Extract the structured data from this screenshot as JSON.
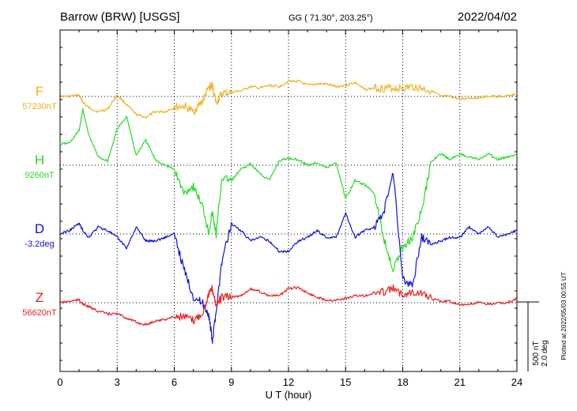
{
  "header": {
    "station": "Barrow (BRW)  [USGS]",
    "coords": "GG ( 71.30°, 203.25°)",
    "date": "2022/04/02"
  },
  "footer": {
    "plotted": "Plotted at 2022/05/03 00:55 UT"
  },
  "chart_data": {
    "type": "line",
    "xlabel": "U T (hour)",
    "xlim": [
      0,
      24
    ],
    "xticks": [
      "0",
      "3",
      "6",
      "9",
      "12",
      "15",
      "18",
      "21",
      "24"
    ],
    "grid": true,
    "scale_bar": {
      "nT": "500 nT",
      "deg": "2.0 deg"
    },
    "series": [
      {
        "name": "F",
        "baseline_label": "57230nT",
        "color": "#f0b020",
        "x": [
          0,
          0.5,
          1,
          1.2,
          1.5,
          2,
          2.5,
          3,
          3.5,
          4,
          4.5,
          5,
          5.5,
          6,
          6.5,
          7,
          7.5,
          7.8,
          8,
          8.2,
          8.5,
          9,
          9.5,
          10,
          10.5,
          11,
          11.5,
          12,
          12.5,
          13,
          13.5,
          14,
          14.5,
          15,
          15.5,
          16,
          16.5,
          17,
          17.5,
          18,
          18.5,
          19,
          19.5,
          20,
          20.5,
          21,
          21.5,
          22,
          22.5,
          23,
          23.5,
          24
        ],
        "values": [
          0,
          0,
          10,
          -40,
          -80,
          -110,
          -90,
          10,
          -60,
          -130,
          -150,
          -110,
          -110,
          -80,
          -70,
          -110,
          -30,
          60,
          80,
          -50,
          20,
          30,
          40,
          70,
          60,
          80,
          70,
          110,
          110,
          80,
          90,
          90,
          70,
          80,
          100,
          50,
          60,
          60,
          60,
          60,
          70,
          60,
          40,
          0,
          0,
          -20,
          -10,
          -10,
          0,
          0,
          0,
          20
        ]
      },
      {
        "name": "H",
        "baseline_label": "9260nT",
        "color": "#22dd22",
        "x": [
          0,
          0.5,
          1,
          1.2,
          1.5,
          2,
          2.5,
          3,
          3.5,
          4,
          4.5,
          5,
          5.5,
          6,
          6.5,
          7,
          7.5,
          7.8,
          8,
          8.2,
          8.5,
          9,
          9.5,
          10,
          10.5,
          11,
          11.5,
          12,
          12.5,
          13,
          13.5,
          14,
          14.5,
          15,
          15.5,
          16,
          16.5,
          17,
          17.5,
          18,
          18.5,
          19,
          19.5,
          20,
          20.5,
          21,
          21.5,
          22,
          22.5,
          23,
          23.5,
          24
        ],
        "values": [
          150,
          160,
          250,
          400,
          220,
          60,
          30,
          260,
          350,
          70,
          180,
          40,
          0,
          -30,
          -200,
          -150,
          -300,
          -480,
          -340,
          -500,
          -90,
          -110,
          -30,
          10,
          -60,
          -110,
          30,
          50,
          40,
          0,
          20,
          -20,
          20,
          -240,
          -110,
          -140,
          -200,
          -520,
          -750,
          -590,
          -520,
          -330,
          30,
          80,
          40,
          80,
          60,
          40,
          80,
          40,
          60,
          80
        ]
      },
      {
        "name": "D",
        "baseline_label": "-3.2deg",
        "color": "#1010dd",
        "x": [
          0,
          0.5,
          1,
          1.2,
          1.5,
          2,
          2.5,
          3,
          3.5,
          4,
          4.5,
          5,
          5.5,
          6,
          6.5,
          7,
          7.5,
          7.8,
          8,
          8.2,
          8.5,
          9,
          9.5,
          10,
          10.5,
          11,
          11.5,
          12,
          12.5,
          13,
          13.5,
          14,
          14.5,
          15,
          15.5,
          16,
          16.5,
          17,
          17.5,
          18,
          18.5,
          19,
          19.5,
          20,
          20.5,
          21,
          21.5,
          22,
          22.5,
          23,
          23.5,
          24
        ],
        "values": [
          0,
          0.1,
          0.3,
          0.1,
          -0.1,
          0.2,
          0.1,
          -0.1,
          -0.4,
          0.2,
          -0.2,
          -0.2,
          -0.1,
          0,
          -1.0,
          -1.8,
          -2.0,
          -2.3,
          -3.1,
          -2.2,
          -0.8,
          0.3,
          0.1,
          -0.2,
          -0.1,
          -0.2,
          -0.5,
          -0.5,
          -0.2,
          -0.1,
          0.1,
          -0.1,
          -0.1,
          0.6,
          -0.1,
          0.1,
          0.2,
          0.6,
          1.8,
          -1.3,
          -1.5,
          -0.1,
          -0.3,
          -0.2,
          -0.1,
          -0.1,
          0.2,
          0,
          0.2,
          -0.1,
          0,
          0.1
        ]
      },
      {
        "name": "Z",
        "baseline_label": "56620nT",
        "color": "#e82020",
        "x": [
          0,
          0.5,
          1,
          1.2,
          1.5,
          2,
          2.5,
          3,
          3.5,
          4,
          4.5,
          5,
          5.5,
          6,
          6.5,
          7,
          7.5,
          7.8,
          8,
          8.2,
          8.5,
          9,
          9.5,
          10,
          10.5,
          11,
          11.5,
          12,
          12.5,
          13,
          13.5,
          14,
          14.5,
          15,
          15.5,
          16,
          16.5,
          17,
          17.5,
          18,
          18.5,
          19,
          19.5,
          20,
          20.5,
          21,
          21.5,
          22,
          22.5,
          23,
          23.5,
          24
        ],
        "values": [
          0,
          10,
          20,
          -10,
          -30,
          -60,
          -80,
          -80,
          -110,
          -140,
          -160,
          -130,
          -120,
          -100,
          -100,
          -130,
          -70,
          60,
          100,
          -20,
          40,
          40,
          50,
          100,
          80,
          50,
          50,
          100,
          110,
          70,
          40,
          20,
          20,
          30,
          50,
          50,
          70,
          80,
          100,
          60,
          80,
          70,
          30,
          10,
          10,
          -20,
          -10,
          0,
          -10,
          -5,
          0,
          30
        ]
      }
    ]
  }
}
